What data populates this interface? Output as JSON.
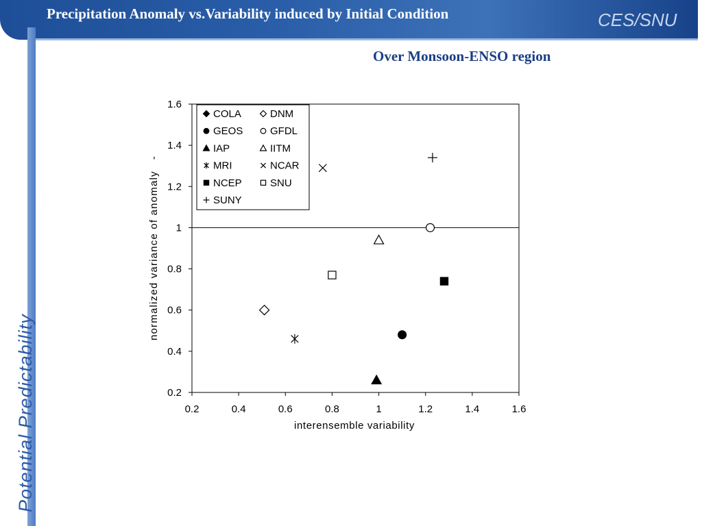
{
  "header": {
    "title": "Precipitation Anomaly vs.Variability induced by Initial Condition",
    "brand": "CES/SNU"
  },
  "sidebar": {
    "label": "Potential  Predictability"
  },
  "subtitle": "Over Monsoon-ENSO region",
  "chart_data": {
    "type": "scatter",
    "title": "",
    "xlabel": "interensemble variability",
    "ylabel": "normalized variance of anomaly   -",
    "xlim": [
      0.2,
      1.6
    ],
    "ylim": [
      0.2,
      1.6
    ],
    "xticks": [
      "0.2",
      "0.4",
      "0.6",
      "0.8",
      "1",
      "1.2",
      "1.4",
      "1.6"
    ],
    "yticks": [
      "0.2",
      "0.4",
      "0.6",
      "0.8",
      "1",
      "1.2",
      "1.4",
      "1.6"
    ],
    "reference_line_y": 1,
    "grid": false,
    "legend_position": "top-left",
    "series": [
      {
        "name": "COLA",
        "marker": "filled-diamond",
        "x": null,
        "y": null
      },
      {
        "name": "DNM",
        "marker": "open-diamond",
        "x": 0.51,
        "y": 0.6
      },
      {
        "name": "GEOS",
        "marker": "filled-circle",
        "x": 1.1,
        "y": 0.48
      },
      {
        "name": "GFDL",
        "marker": "open-circle",
        "x": 1.22,
        "y": 1.0
      },
      {
        "name": "IAP",
        "marker": "filled-triangle",
        "x": 0.99,
        "y": 0.26
      },
      {
        "name": "IITM",
        "marker": "open-triangle",
        "x": 1.0,
        "y": 0.94
      },
      {
        "name": "MRI",
        "marker": "asterisk",
        "x": 0.64,
        "y": 0.46
      },
      {
        "name": "NCAR",
        "marker": "cross",
        "x": 0.76,
        "y": 1.29
      },
      {
        "name": "NCEP",
        "marker": "filled-square",
        "x": 1.28,
        "y": 0.74
      },
      {
        "name": "SNU",
        "marker": "open-square",
        "x": 0.8,
        "y": 0.77
      },
      {
        "name": "SUNY",
        "marker": "plus",
        "x": 1.23,
        "y": 1.34
      }
    ]
  }
}
